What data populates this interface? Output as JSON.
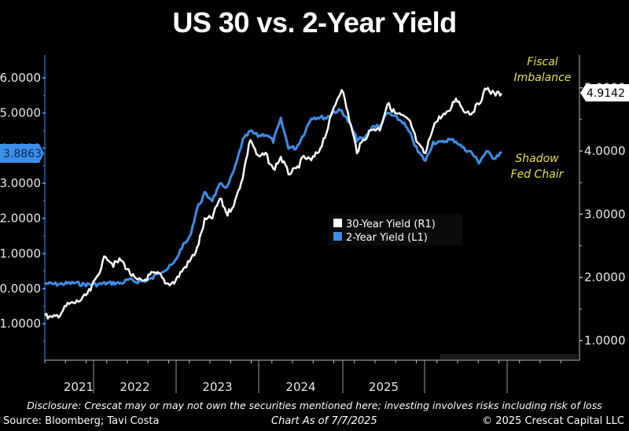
{
  "title": "US 30 vs. 2-Year Yield",
  "footer": {
    "disclosure": "Disclosure: Crescat may or may not own the securities mentioned here; investing involves risks including risk of loss",
    "source": "Source: Bloomberg; Tavi Costa",
    "as_of": "Chart As of 7/7/2025",
    "copyright": "© 2025 Crescat Capital LLC"
  },
  "colors": {
    "thirty_year": "#ffffff",
    "two_year": "#3d8ee8",
    "annotation": "#e6e34a",
    "background": "#000000"
  },
  "chart_data": {
    "type": "line",
    "title": "US 30 vs. 2-Year Yield",
    "xlabel": "",
    "x_tick_labels": [
      "2021",
      "2022",
      "2023",
      "2024",
      "2025"
    ],
    "x_range": [
      "2020-07",
      "2025-07"
    ],
    "left_axis": {
      "label": "2-Year Yield (L1)",
      "ylim": [
        -1.5,
        6.3
      ],
      "ticks": [
        "6.0000",
        "5.0000",
        "4.0000",
        "3.0000",
        "2.0000",
        "1.0000",
        "0.0000",
        "-1.0000"
      ],
      "tick_values": [
        6,
        5,
        4,
        3,
        2,
        1,
        0,
        -1
      ],
      "last_value_label": "3.8863"
    },
    "right_axis": {
      "label": "30-Year Yield (R1)",
      "ylim": [
        0.7,
        5.2
      ],
      "ticks": [
        "5.0000",
        "4.0000",
        "3.0000",
        "2.0000",
        "1.0000"
      ],
      "tick_values": [
        5,
        4,
        3,
        2,
        1
      ],
      "last_value_label": "4.9142"
    },
    "legend": {
      "placement": "center-right",
      "entries": [
        "30-Year Yield (R1)",
        "2-Year Yield (L1)"
      ]
    },
    "annotations": [
      {
        "text_lines": [
          "Fiscal",
          "Imbalance"
        ],
        "near": "30-Year Yield end"
      },
      {
        "text_lines": [
          "Shadow",
          "Fed Chair"
        ],
        "near": "2-Year Yield end"
      }
    ],
    "x": [
      "2020-07",
      "2020-08",
      "2020-09",
      "2020-10",
      "2020-11",
      "2020-12",
      "2021-01",
      "2021-02",
      "2021-03",
      "2021-04",
      "2021-05",
      "2021-06",
      "2021-07",
      "2021-08",
      "2021-09",
      "2021-10",
      "2021-11",
      "2021-12",
      "2022-01",
      "2022-02",
      "2022-03",
      "2022-04",
      "2022-05",
      "2022-06",
      "2022-07",
      "2022-08",
      "2022-09",
      "2022-10",
      "2022-11",
      "2022-12",
      "2023-01",
      "2023-02",
      "2023-03",
      "2023-04",
      "2023-05",
      "2023-06",
      "2023-07",
      "2023-08",
      "2023-09",
      "2023-10",
      "2023-11",
      "2023-12",
      "2024-01",
      "2024-02",
      "2024-03",
      "2024-04",
      "2024-05",
      "2024-06",
      "2024-07",
      "2024-08",
      "2024-09",
      "2024-10",
      "2024-11",
      "2024-12",
      "2025-01",
      "2025-02",
      "2025-03",
      "2025-04",
      "2025-05",
      "2025-06",
      "2025-07"
    ],
    "series": [
      {
        "name": "30-Year Yield (R1)",
        "axis": "right",
        "values": [
          1.4,
          1.35,
          1.42,
          1.57,
          1.6,
          1.66,
          1.8,
          2.05,
          2.35,
          2.2,
          2.28,
          2.1,
          1.95,
          1.95,
          2.05,
          2.05,
          1.9,
          1.92,
          2.1,
          2.25,
          2.45,
          2.9,
          2.95,
          3.25,
          3.0,
          3.2,
          3.6,
          4.2,
          3.9,
          3.95,
          3.7,
          3.9,
          3.65,
          3.7,
          3.9,
          3.85,
          4.0,
          4.3,
          4.7,
          5.0,
          4.5,
          4.0,
          4.2,
          4.35,
          4.35,
          4.75,
          4.6,
          4.55,
          4.45,
          4.1,
          3.95,
          4.4,
          4.55,
          4.6,
          4.85,
          4.65,
          4.6,
          4.75,
          5.0,
          4.9,
          4.91
        ]
      },
      {
        "name": "2-Year Yield (L1)",
        "axis": "left",
        "values": [
          0.15,
          0.13,
          0.13,
          0.15,
          0.16,
          0.12,
          0.12,
          0.12,
          0.15,
          0.16,
          0.15,
          0.25,
          0.2,
          0.22,
          0.27,
          0.48,
          0.55,
          0.73,
          1.18,
          1.44,
          2.28,
          2.7,
          2.53,
          2.95,
          2.9,
          3.45,
          4.22,
          4.48,
          4.35,
          4.4,
          4.2,
          4.81,
          4.03,
          4.0,
          4.4,
          4.87,
          4.88,
          4.86,
          5.04,
          5.07,
          4.7,
          4.25,
          4.27,
          4.62,
          4.62,
          5.0,
          4.88,
          4.75,
          4.4,
          3.9,
          3.64,
          4.17,
          4.15,
          4.24,
          4.2,
          3.99,
          3.88,
          3.6,
          3.9,
          3.72,
          3.89
        ]
      }
    ]
  }
}
